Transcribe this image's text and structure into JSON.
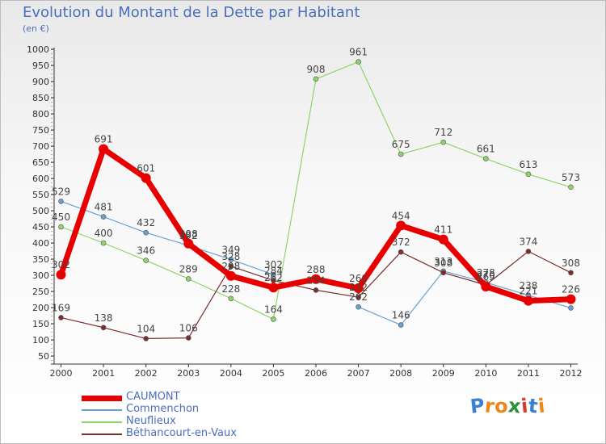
{
  "title": "Evolution du Montant de la Dette par Habitant",
  "unit": "(en €)",
  "logo": {
    "text": "Proxiti",
    "letters": [
      "P",
      "r",
      "o",
      "x",
      "i",
      "t",
      "i"
    ],
    "colors": [
      "#3a7fd0",
      "#e8891e",
      "#e8891e",
      "#2f8f3a",
      "#d63c2e",
      "#3a7fd0",
      "#e8891e"
    ]
  },
  "chart_data": {
    "type": "line",
    "x": [
      "2000",
      "2001",
      "2002",
      "2003",
      "2004",
      "2005",
      "2006",
      "2007",
      "2008",
      "2009",
      "2010",
      "2011",
      "2012"
    ],
    "ylim": [
      50,
      1000
    ],
    "yticks": [
      50,
      100,
      150,
      200,
      250,
      300,
      350,
      400,
      450,
      500,
      550,
      600,
      650,
      700,
      750,
      800,
      850,
      900,
      950,
      1000
    ],
    "grid": false,
    "legend_position": "bottom-left",
    "series": [
      {
        "name": "Commenchon",
        "color": "#6aa0d0",
        "width": 1.2,
        "values": [
          529,
          481,
          432,
          392,
          349,
          302,
          null,
          202,
          146,
          313,
          278,
          238,
          199
        ],
        "labels": [
          "529",
          "481",
          "432",
          "392",
          "349",
          "302",
          "",
          "202",
          "146",
          "313",
          "278",
          "238",
          ""
        ]
      },
      {
        "name": "Neuflieux",
        "color": "#8ed46a",
        "width": 1.2,
        "values": [
          450,
          400,
          346,
          289,
          228,
          164,
          908,
          961,
          675,
          712,
          661,
          613,
          573
        ],
        "labels": [
          "450",
          "400",
          "346",
          "289",
          "228",
          "164",
          "908",
          "961",
          "675",
          "712",
          "661",
          "613",
          "573"
        ]
      },
      {
        "name": "Béthancourt-en-Vaux",
        "color": "#7a2e2e",
        "width": 1.2,
        "values": [
          169,
          138,
          104,
          106,
          328,
          284,
          254,
          232,
          372,
          308,
          270,
          374,
          308
        ],
        "labels": [
          "169",
          "138",
          "104",
          "106",
          "328",
          "284",
          "254",
          "232",
          "372",
          "308",
          "270",
          "374",
          "308"
        ]
      },
      {
        "name": "CAUMONT",
        "color": "#e80000",
        "width": 7,
        "values": [
          302,
          691,
          601,
          398,
          298,
          262,
          288,
          260,
          454,
          411,
          265,
          221,
          226
        ],
        "labels": [
          "302",
          "691",
          "601",
          "398",
          "298",
          "262",
          "288",
          "260",
          "454",
          "411",
          "265",
          "221",
          "226"
        ]
      }
    ]
  },
  "legend": [
    {
      "label": "CAUMONT",
      "color": "#e80000"
    },
    {
      "label": "Commenchon",
      "color": "#6aa0d0"
    },
    {
      "label": "Neuflieux",
      "color": "#8ed46a"
    },
    {
      "label": "Béthancourt-en-Vaux",
      "color": "#7a2e2e"
    }
  ]
}
